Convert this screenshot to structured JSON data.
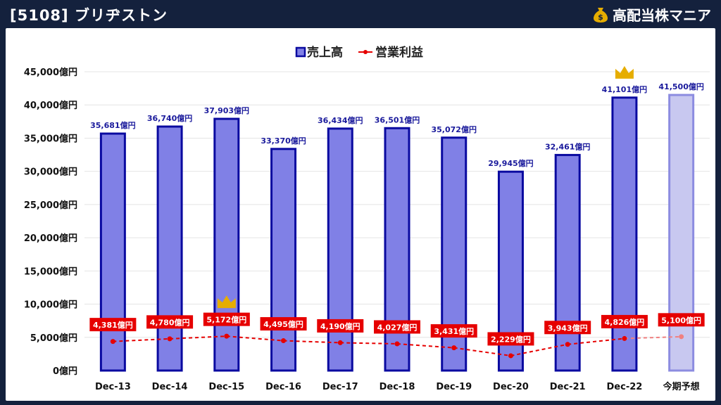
{
  "header": {
    "title": "[5108] ブリヂストン",
    "brand": "高配当株マニア"
  },
  "colors": {
    "background": "#14213d",
    "bar_fill": "#8080e6",
    "bar_stroke": "#0a0aa0",
    "forecast_fill": "#c8c8f0",
    "forecast_stroke": "#8c8ce0",
    "line": "#e60000",
    "label_bg": "#e60000",
    "crown": "#e6ad00"
  },
  "chart_data": {
    "type": "bar",
    "categories": [
      "Dec-13",
      "Dec-14",
      "Dec-15",
      "Dec-16",
      "Dec-17",
      "Dec-18",
      "Dec-19",
      "Dec-20",
      "Dec-21",
      "Dec-22",
      "今期予想"
    ],
    "series": [
      {
        "name": "売上高",
        "type": "bar",
        "values": [
          35681,
          36740,
          37903,
          33370,
          36434,
          36501,
          35072,
          29945,
          32461,
          41101,
          41500
        ],
        "labels": [
          "35,681億円",
          "36,740億円",
          "37,903億円",
          "33,370億円",
          "36,434億円",
          "36,501億円",
          "35,072億円",
          "29,945億円",
          "32,461億円",
          "41,101億円",
          "41,500億円"
        ]
      },
      {
        "name": "営業利益",
        "type": "line",
        "values": [
          4381,
          4780,
          5172,
          4495,
          4190,
          4027,
          3431,
          2229,
          3943,
          4826,
          5100
        ],
        "labels": [
          "4,381億円",
          "4,780億円",
          "5,172億円",
          "4,495億円",
          "4,190億円",
          "4,027億円",
          "3,431億円",
          "2,229億円",
          "3,943億円",
          "4,826億円",
          "5,100億円"
        ]
      }
    ],
    "forecast_index": 10,
    "crowns": {
      "bar_index": 9,
      "line_index": 2
    },
    "ylim": [
      0,
      45000
    ],
    "yticks": [
      "0億円",
      "5,000億円",
      "10,000億円",
      "15,000億円",
      "20,000億円",
      "25,000億円",
      "30,000億円",
      "35,000億円",
      "40,000億円",
      "45,000億円"
    ],
    "ytick_values": [
      0,
      5000,
      10000,
      15000,
      20000,
      25000,
      30000,
      35000,
      40000,
      45000
    ],
    "grid": true,
    "legend_position": "top-center"
  }
}
